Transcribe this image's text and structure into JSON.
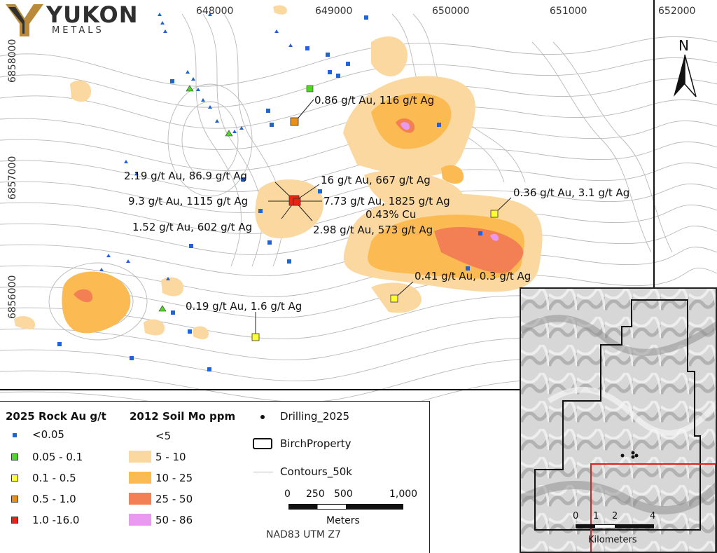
{
  "logo": {
    "name": "YUKON",
    "sub": "METALS"
  },
  "grid": {
    "eastings": [
      "648000",
      "649000",
      "650000",
      "651000",
      "652000"
    ],
    "northings": [
      "6858000",
      "6857000",
      "6856000"
    ]
  },
  "north_arrow": {
    "label": "N"
  },
  "samples": [
    {
      "label": "0.86 g/t Au, 116 g/t Ag",
      "class": "0.5 - 1.0"
    },
    {
      "label": "2.19 g/t Au, 86.9 g/t Ag",
      "class": "1.0 -16.0"
    },
    {
      "label": "9.3 g/t Au, 1115 g/t Ag",
      "class": "1.0 -16.0"
    },
    {
      "label": "1.52 g/t Au, 602 g/t Ag",
      "class": "1.0 -16.0"
    },
    {
      "label": "16 g/t Au, 667 g/t Ag",
      "class": "1.0 -16.0"
    },
    {
      "label": "7.73 g/t Au, 1825 g/t Ag",
      "class": "1.0 -16.0"
    },
    {
      "label": "0.43% Cu",
      "class": "1.0 -16.0"
    },
    {
      "label": "2.98 g/t Au, 573 g/t Ag",
      "class": "1.0 -16.0"
    },
    {
      "label": "0.36 g/t Au, 3.1 g/t Ag",
      "class": "0.1 - 0.5"
    },
    {
      "label": "0.41 g/t Au, 0.3 g/t Ag",
      "class": "0.1 - 0.5"
    },
    {
      "label": "0.19 g/t Au, 1.6 g/t Ag",
      "class": "0.1 - 0.5"
    }
  ],
  "legend": {
    "rock_title": "2025 Rock Au g/t",
    "rock": [
      {
        "label": "<0.05",
        "color": "#1f63d6"
      },
      {
        "label": "0.05 - 0.1",
        "color": "#4fd62a"
      },
      {
        "label": "0.1 - 0.5",
        "color": "#ffff33"
      },
      {
        "label": "0.5 - 1.0",
        "color": "#e9901a"
      },
      {
        "label": "1.0 -16.0",
        "color": "#ee2211"
      }
    ],
    "soil_title": "2012 Soil Mo ppm",
    "soil": [
      {
        "label": "<5",
        "color": "#ffffff"
      },
      {
        "label": "5 - 10",
        "color": "#fbd8a0"
      },
      {
        "label": "10 - 25",
        "color": "#fbbb52"
      },
      {
        "label": "25 - 50",
        "color": "#f37f55"
      },
      {
        "label": "50 - 86",
        "color": "#e99af0"
      }
    ],
    "drilling": "Drilling_2025",
    "property": "BirchProperty",
    "contours": "Contours_50k",
    "scale": {
      "ticks": [
        "0",
        "250",
        "500",
        "1,000"
      ],
      "unit": "Meters"
    },
    "datum": "NAD83 UTM Z7"
  },
  "inset": {
    "scale": {
      "ticks": [
        "0",
        "1",
        "2",
        "4"
      ],
      "unit": "Kilometers"
    }
  }
}
